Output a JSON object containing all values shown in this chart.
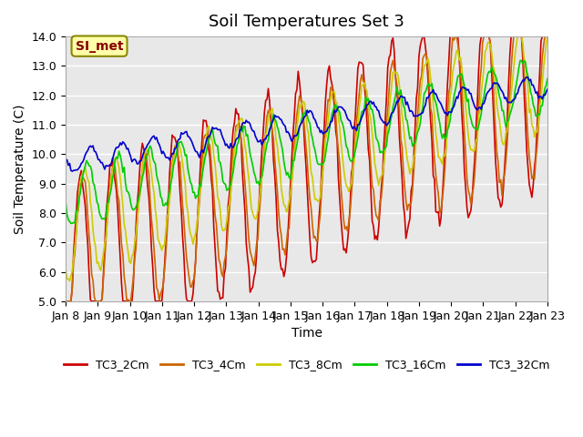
{
  "title": "Soil Temperatures Set 3",
  "xlabel": "Time",
  "ylabel": "Soil Temperature (C)",
  "ylim": [
    5.0,
    14.0
  ],
  "yticks": [
    5.0,
    6.0,
    7.0,
    8.0,
    9.0,
    10.0,
    11.0,
    12.0,
    13.0,
    14.0
  ],
  "x_labels": [
    "Jan 8",
    "Jan 9",
    "Jan 10",
    "Jan 11",
    "Jan 12",
    "Jan 13",
    "Jan 14",
    "Jan 15",
    "Jan 16",
    "Jan 17",
    "Jan 18",
    "Jan 19",
    "Jan 20",
    "Jan 21",
    "Jan 22",
    "Jan 23"
  ],
  "annotation": "SI_met",
  "annotation_bg": "#ffffaa",
  "annotation_border": "#888800",
  "annotation_text_color": "#880000",
  "series_colors": {
    "TC3_2Cm": "#cc0000",
    "TC3_4Cm": "#cc6600",
    "TC3_8Cm": "#cccc00",
    "TC3_16Cm": "#00cc00",
    "TC3_32Cm": "#0000cc"
  },
  "bg_color": "#ffffff",
  "plot_bg_color": "#e8e8e8",
  "grid_color": "#ffffff",
  "title_fontsize": 13,
  "label_fontsize": 10,
  "tick_fontsize": 9,
  "legend_fontsize": 9
}
